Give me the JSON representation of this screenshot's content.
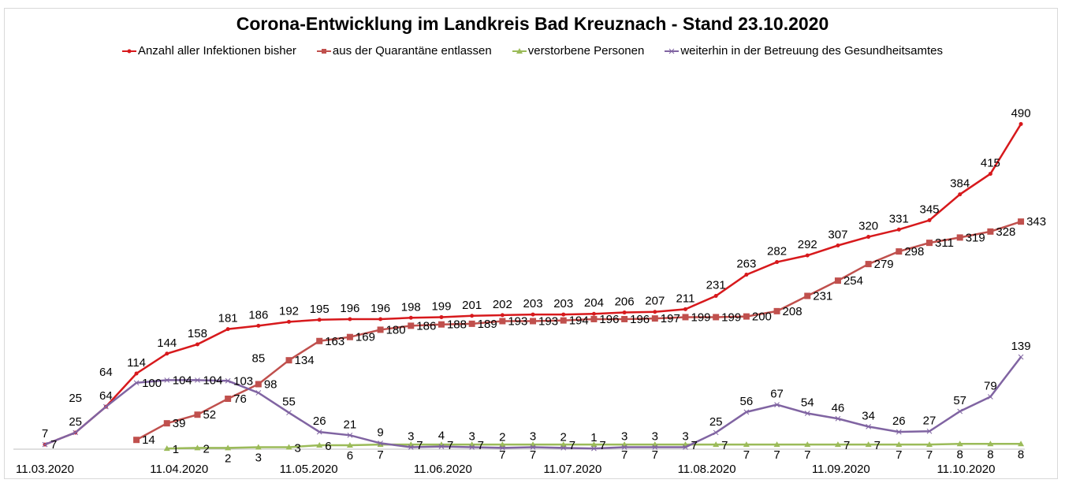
{
  "chart_data": {
    "type": "line",
    "title": "Corona-Entwicklung im Landkreis Bad Kreuznach - Stand 23.10.2020",
    "xlabel": "",
    "ylabel": "",
    "ylim": [
      0,
      500
    ],
    "x_tick_labels": [
      "11.03.2020",
      "11.04.2020",
      "11.05.2020",
      "11.06.2020",
      "11.07.2020",
      "11.08.2020",
      "11.09.2020",
      "11.10.2020"
    ],
    "legend_position": "top",
    "grid": false,
    "series": [
      {
        "name": "Anzahl aller Infektionen bisher",
        "color": "#d7191c",
        "start": 0,
        "values": [
          7,
          25,
          64,
          114,
          144,
          158,
          181,
          186,
          192,
          195,
          196,
          196,
          198,
          199,
          201,
          202,
          203,
          203,
          204,
          206,
          207,
          211,
          231,
          263,
          282,
          292,
          307,
          320,
          331,
          345,
          384,
          415,
          490
        ]
      },
      {
        "name": "aus der Quarantäne entlassen",
        "color": "#c0504d",
        "start": 3,
        "values": [
          14,
          39,
          52,
          76,
          98,
          134,
          163,
          169,
          180,
          186,
          188,
          189,
          193,
          193,
          194,
          196,
          196,
          197,
          199,
          199,
          200,
          208,
          231,
          254,
          279,
          298,
          311,
          319,
          328,
          343
        ]
      },
      {
        "name": "verstorbene Personen",
        "color": "#9bbb59",
        "start": 4,
        "values": [
          1,
          2,
          2,
          3,
          3,
          6,
          6,
          7,
          7,
          7,
          7,
          7,
          7,
          7,
          7,
          7,
          7,
          7,
          7,
          7,
          7,
          7,
          7,
          7,
          7,
          7,
          8,
          8,
          8
        ]
      },
      {
        "name": "weiterhin in der Betreuung des Gesundheitsamtes",
        "color": "#8064a2",
        "start": 0,
        "values": [
          7,
          25,
          64,
          100,
          104,
          104,
          103,
          85,
          55,
          26,
          21,
          9,
          3,
          4,
          3,
          2,
          3,
          2,
          1,
          3,
          3,
          3,
          25,
          56,
          67,
          54,
          46,
          34,
          26,
          27,
          57,
          79,
          139
        ]
      }
    ]
  }
}
